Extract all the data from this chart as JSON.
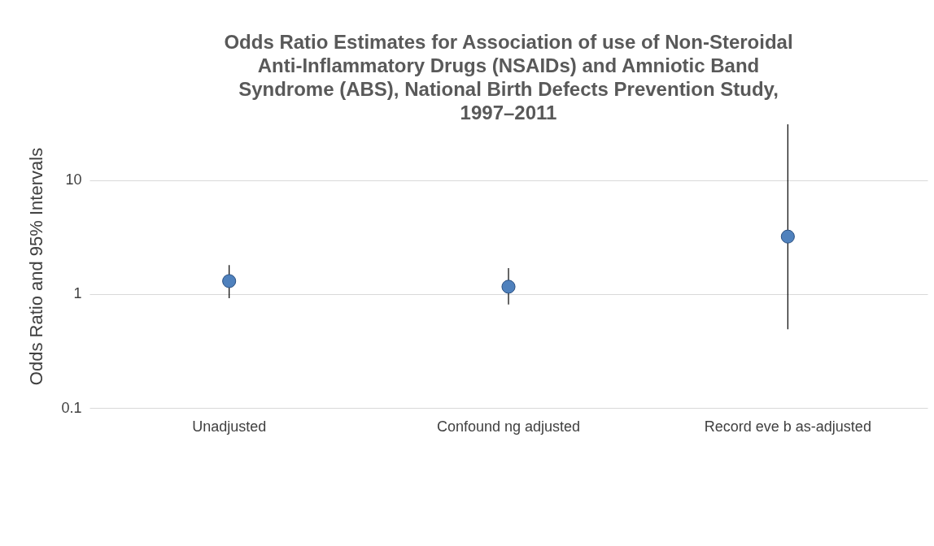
{
  "chart_data": {
    "type": "scatter",
    "title": [
      "Odds Ratio Estimates for Association of use of Non-Steroidal",
      "Anti-Inflammatory Drugs (NSAIDs) and Amniotic Band",
      "Syndrome (ABS), National Birth Defects Prevention Study,",
      "1997–2011"
    ],
    "ylabel": "Odds Ratio and 95% Intervals",
    "categories": [
      "Unadjusted",
      "Confound ng adjusted",
      "Record  eve  b as-adjusted"
    ],
    "values": [
      1.3,
      1.16,
      3.2
    ],
    "errors": [
      [
        0.92,
        1.8
      ],
      [
        0.81,
        1.69
      ],
      [
        0.49,
        31
      ]
    ],
    "color": "#4f81bd",
    "marker": "circle",
    "log": "y",
    "grid": "y",
    "ylim": [
      0.1,
      31
    ],
    "yticks": [
      0.1,
      1,
      10
    ]
  }
}
